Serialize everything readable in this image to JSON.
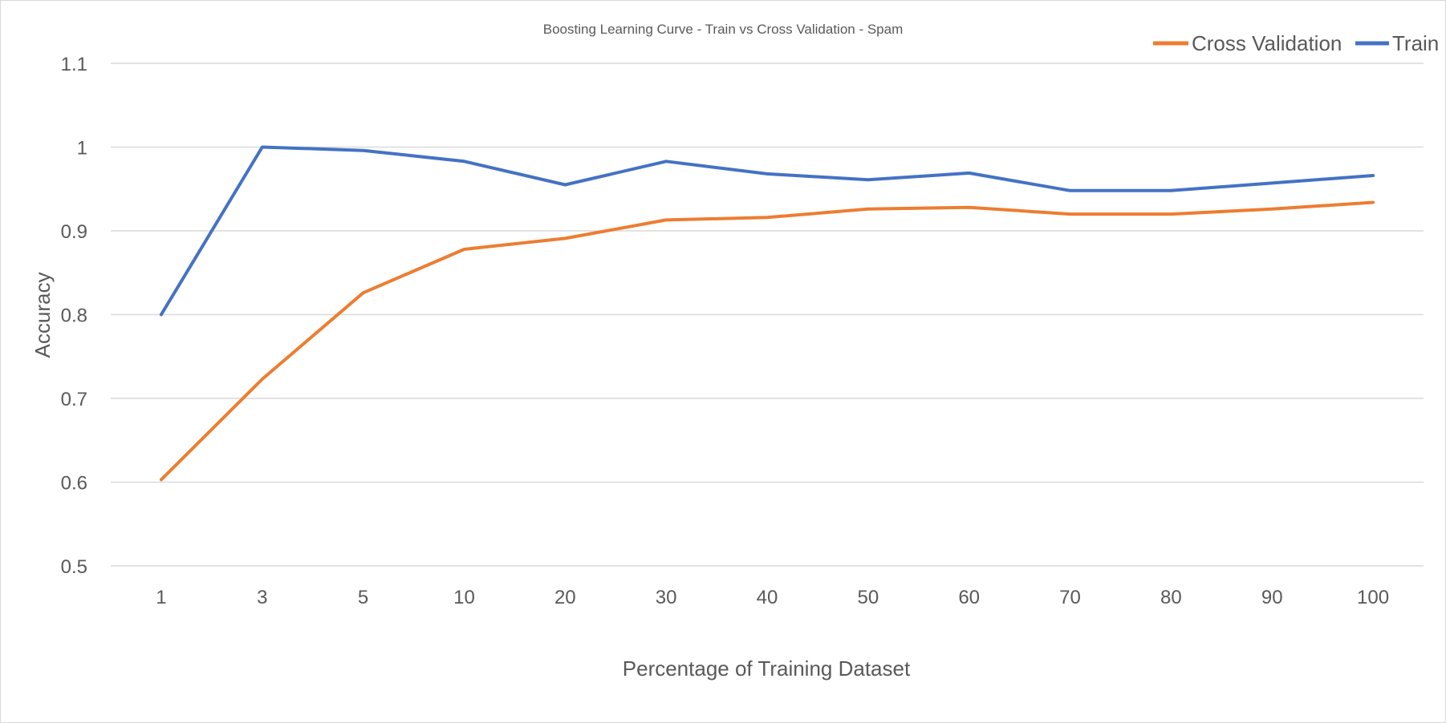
{
  "colors": {
    "cross_validation": "#ED7D31",
    "train": "#4472C4"
  },
  "chart_data": {
    "type": "line",
    "title": "Boosting Learning Curve - Train vs Cross Validation - Spam",
    "xlabel": "Percentage of Training Dataset",
    "ylabel": "Accuracy",
    "categories": [
      "1",
      "3",
      "5",
      "10",
      "20",
      "30",
      "40",
      "50",
      "60",
      "70",
      "80",
      "90",
      "100"
    ],
    "ylim": [
      0.5,
      1.1
    ],
    "yticks": [
      "0.5",
      "0.6",
      "0.7",
      "0.8",
      "0.9",
      "1",
      "1.1"
    ],
    "grid": true,
    "legend_position": "top-right",
    "series": [
      {
        "name": "Cross Validation",
        "color": "#ED7D31",
        "values": [
          0.603,
          0.723,
          0.826,
          0.878,
          0.891,
          0.913,
          0.916,
          0.926,
          0.928,
          0.92,
          0.92,
          0.926,
          0.934
        ]
      },
      {
        "name": "Train",
        "color": "#4472C4",
        "values": [
          0.8,
          1.0,
          0.996,
          0.983,
          0.955,
          0.983,
          0.968,
          0.961,
          0.969,
          0.948,
          0.948,
          0.957,
          0.966
        ]
      }
    ]
  }
}
